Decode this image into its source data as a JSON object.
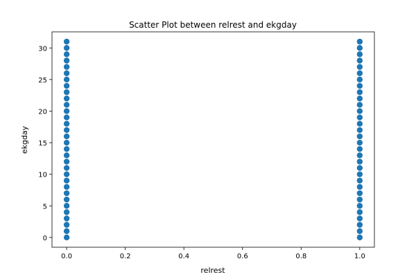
{
  "chart_data": {
    "type": "scatter",
    "title": "Scatter Plot between relrest and ekgday",
    "xlabel": "relrest",
    "ylabel": "ekgday",
    "xlim": [
      -0.05,
      1.05
    ],
    "ylim": [
      -1.55,
      32.55
    ],
    "xticks": [
      0.0,
      0.2,
      0.4,
      0.6,
      0.8,
      1.0
    ],
    "xtick_labels": [
      "0.0",
      "0.2",
      "0.4",
      "0.6",
      "0.8",
      "1.0"
    ],
    "yticks": [
      0,
      5,
      10,
      15,
      20,
      25,
      30
    ],
    "ytick_labels": [
      "0",
      "5",
      "10",
      "15",
      "20",
      "25",
      "30"
    ],
    "grid": false,
    "marker_color": "#1f77b4",
    "series": [
      {
        "points": [
          [
            0,
            0
          ],
          [
            0,
            1
          ],
          [
            0,
            2
          ],
          [
            0,
            3
          ],
          [
            0,
            4
          ],
          [
            0,
            5
          ],
          [
            0,
            6
          ],
          [
            0,
            7
          ],
          [
            0,
            8
          ],
          [
            0,
            9
          ],
          [
            0,
            10
          ],
          [
            0,
            11
          ],
          [
            0,
            12
          ],
          [
            0,
            13
          ],
          [
            0,
            14
          ],
          [
            0,
            15
          ],
          [
            0,
            16
          ],
          [
            0,
            17
          ],
          [
            0,
            18
          ],
          [
            0,
            19
          ],
          [
            0,
            20
          ],
          [
            0,
            21
          ],
          [
            0,
            22
          ],
          [
            0,
            23
          ],
          [
            0,
            24
          ],
          [
            0,
            25
          ],
          [
            0,
            26
          ],
          [
            0,
            27
          ],
          [
            0,
            28
          ],
          [
            0,
            29
          ],
          [
            0,
            30
          ],
          [
            0,
            31
          ],
          [
            1,
            0
          ],
          [
            1,
            1
          ],
          [
            1,
            2
          ],
          [
            1,
            3
          ],
          [
            1,
            4
          ],
          [
            1,
            5
          ],
          [
            1,
            6
          ],
          [
            1,
            7
          ],
          [
            1,
            8
          ],
          [
            1,
            9
          ],
          [
            1,
            10
          ],
          [
            1,
            11
          ],
          [
            1,
            12
          ],
          [
            1,
            13
          ],
          [
            1,
            14
          ],
          [
            1,
            15
          ],
          [
            1,
            16
          ],
          [
            1,
            17
          ],
          [
            1,
            18
          ],
          [
            1,
            19
          ],
          [
            1,
            20
          ],
          [
            1,
            21
          ],
          [
            1,
            22
          ],
          [
            1,
            23
          ],
          [
            1,
            24
          ],
          [
            1,
            25
          ],
          [
            1,
            26
          ],
          [
            1,
            27
          ],
          [
            1,
            28
          ],
          [
            1,
            29
          ],
          [
            1,
            30
          ],
          [
            1,
            31
          ]
        ]
      }
    ]
  }
}
